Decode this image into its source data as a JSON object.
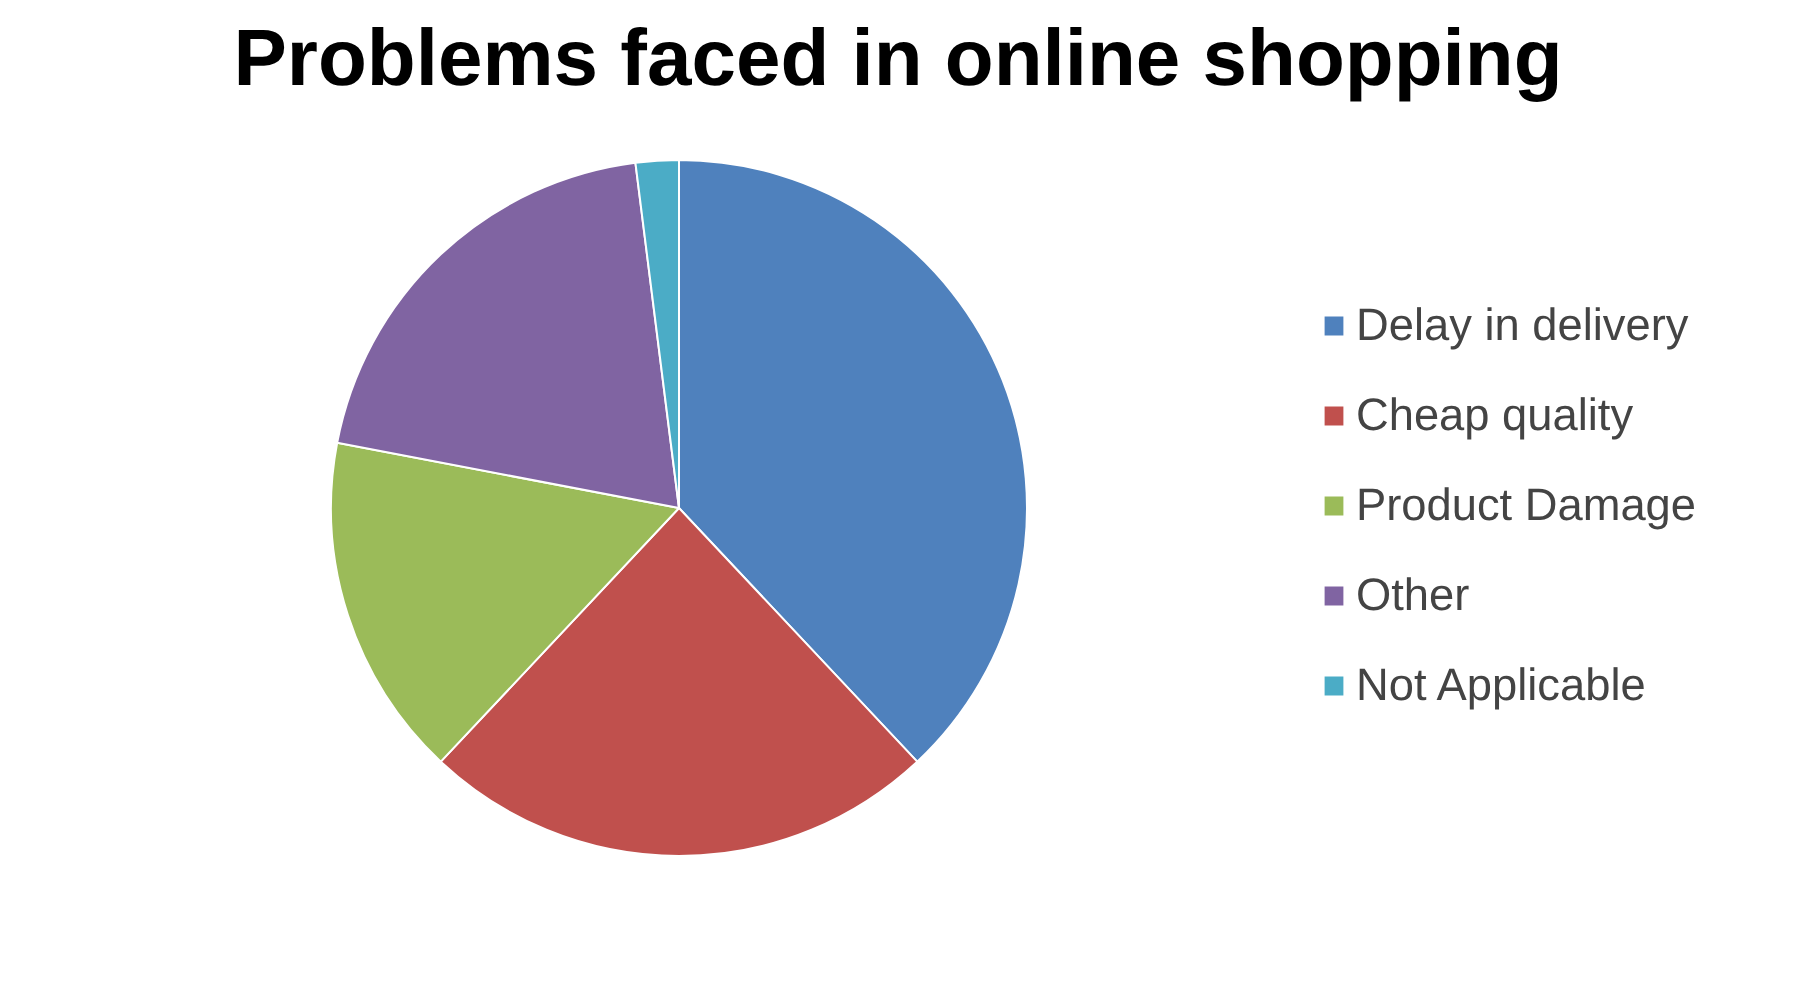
{
  "chart_data": {
    "type": "pie",
    "title": "Problems faced in online shopping",
    "categories": [
      "Delay in delivery",
      "Cheap quality",
      "Product Damage",
      "Other",
      "Not Applicable"
    ],
    "values": [
      38,
      24,
      16,
      20,
      2
    ],
    "colors": [
      "#4f81bd",
      "#c0504d",
      "#9bbb59",
      "#8064a2",
      "#4bacc6"
    ],
    "legend": "right"
  }
}
